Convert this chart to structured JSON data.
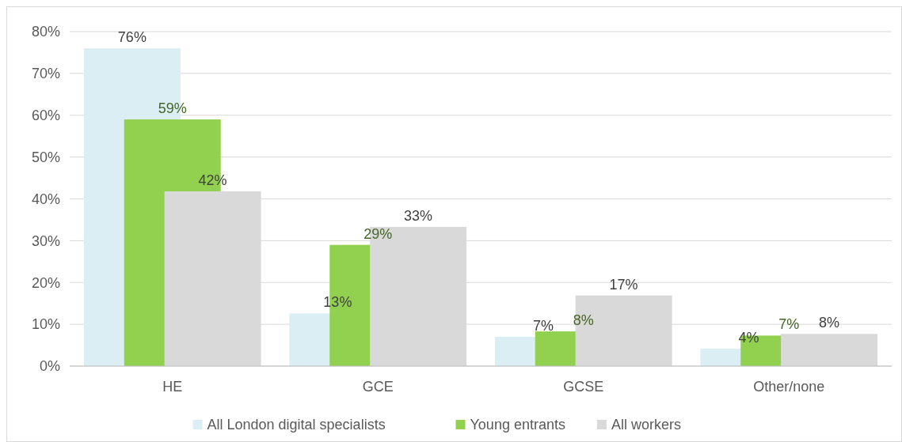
{
  "chart_data": {
    "type": "bar",
    "categories": [
      "HE",
      "GCE",
      "GCSE",
      "Other/none"
    ],
    "series": [
      {
        "name": "All London digital specialists",
        "color": "#daeef3",
        "values": [
          76,
          12.6,
          7,
          4.2
        ],
        "value_labels": [
          "76%",
          "13%",
          "7%",
          "4%"
        ]
      },
      {
        "name": "Young entrants",
        "color": "#92d050",
        "values": [
          59,
          29,
          8.3,
          7.3
        ],
        "value_labels": [
          "59%",
          "29%",
          "8%",
          "7%"
        ]
      },
      {
        "name": "All workers",
        "color": "#d9d9d9",
        "values": [
          41.8,
          33.3,
          16.9,
          7.7
        ],
        "value_labels": [
          "42%",
          "33%",
          "17%",
          "8%"
        ]
      }
    ],
    "ylim": [
      0,
      80
    ],
    "yticks": [
      {
        "value": 0,
        "label": "0%"
      },
      {
        "value": 10,
        "label": "10%"
      },
      {
        "value": 20,
        "label": "20%"
      },
      {
        "value": 30,
        "label": "30%"
      },
      {
        "value": 40,
        "label": "40%"
      },
      {
        "value": 50,
        "label": "50%"
      },
      {
        "value": 60,
        "label": "60%"
      },
      {
        "value": 70,
        "label": "70%"
      },
      {
        "value": 80,
        "label": "80%"
      }
    ],
    "grid": "y",
    "legend": "bottom"
  }
}
